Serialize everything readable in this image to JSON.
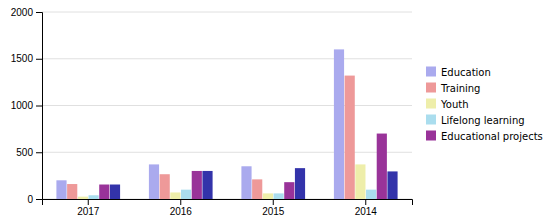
{
  "chart_data": {
    "type": "bar",
    "categories": [
      "2017",
      "2016",
      "2015",
      "2014"
    ],
    "series": [
      {
        "name": "Education",
        "color": "#aaaaee",
        "values": [
          200,
          370,
          350,
          1600
        ]
      },
      {
        "name": "Training",
        "color": "#ee9999",
        "values": [
          160,
          265,
          210,
          1320
        ]
      },
      {
        "name": "Youth",
        "color": "#eeeeaa",
        "values": [
          25,
          70,
          60,
          370
        ]
      },
      {
        "name": "Lifelong learning",
        "color": "#aaddee",
        "values": [
          40,
          100,
          60,
          100
        ]
      },
      {
        "name": "Educational projects",
        "color": "#993399",
        "values": [
          155,
          300,
          180,
          700
        ]
      },
      {
        "color": "#3333aa",
        "values": [
          155,
          300,
          330,
          295
        ]
      }
    ],
    "ylim": [
      0,
      2000
    ],
    "yticks": [
      0,
      500,
      1000,
      1500,
      2000
    ],
    "grid": true,
    "legend": "right"
  }
}
